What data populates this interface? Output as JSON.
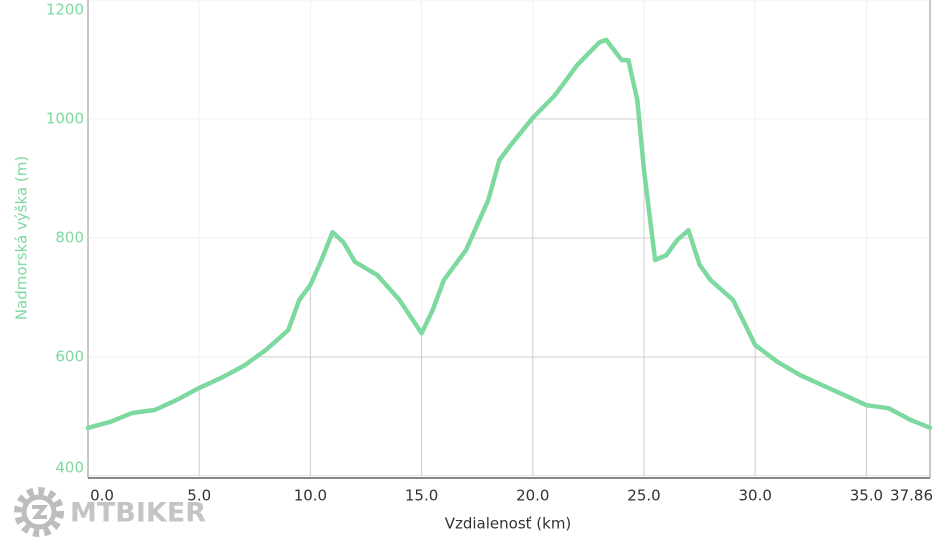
{
  "chart_data": {
    "type": "line",
    "y_label": "Nadmorská výška (m)",
    "x_label": "Vzdialenosť (km)",
    "logo": "MTBIKER",
    "x": [
      0,
      1,
      2,
      3,
      4,
      5,
      6,
      7,
      8,
      9,
      9.5,
      10,
      10.5,
      11,
      11.5,
      12,
      13,
      14,
      15,
      15.5,
      16,
      17,
      18,
      18.5,
      19,
      20,
      21,
      22,
      23,
      23.3,
      24,
      24.3,
      24.7,
      25,
      25.5,
      26,
      26.5,
      27,
      27.5,
      28,
      29,
      30,
      31,
      32,
      33,
      34,
      35,
      36,
      37,
      37.86
    ],
    "series": [
      {
        "name": "Nadmorská výška (m)",
        "color": "#7ed9a0",
        "values": [
          481,
          491,
          506,
          511,
          528,
          548,
          565,
          585,
          612,
          645,
          696,
          721,
          763,
          810,
          792,
          760,
          738,
          696,
          640,
          679,
          729,
          780,
          864,
          931,
          956,
          1002,
          1040,
          1091,
          1129,
          1133,
          1099,
          1099,
          1032,
          914,
          763,
          771,
          797,
          813,
          755,
          729,
          696,
          620,
          592,
          570,
          553,
          536,
          519,
          514,
          494,
          481
        ]
      }
    ],
    "xlim": [
      0,
      37.86
    ],
    "ylim": [
      400,
      1200
    ],
    "xticks": [
      {
        "value": 0,
        "label": "0.0"
      },
      {
        "value": 5,
        "label": "5.0"
      },
      {
        "value": 10,
        "label": "10.0"
      },
      {
        "value": 15,
        "label": "15.0"
      },
      {
        "value": 20,
        "label": "20.0"
      },
      {
        "value": 25,
        "label": "25.0"
      },
      {
        "value": 30,
        "label": "30.0"
      },
      {
        "value": 35,
        "label": "35.0"
      },
      {
        "value": 37.86,
        "label": "37.86"
      }
    ],
    "yticks": [
      400,
      600,
      800,
      1000,
      1200
    ],
    "grid": true
  }
}
